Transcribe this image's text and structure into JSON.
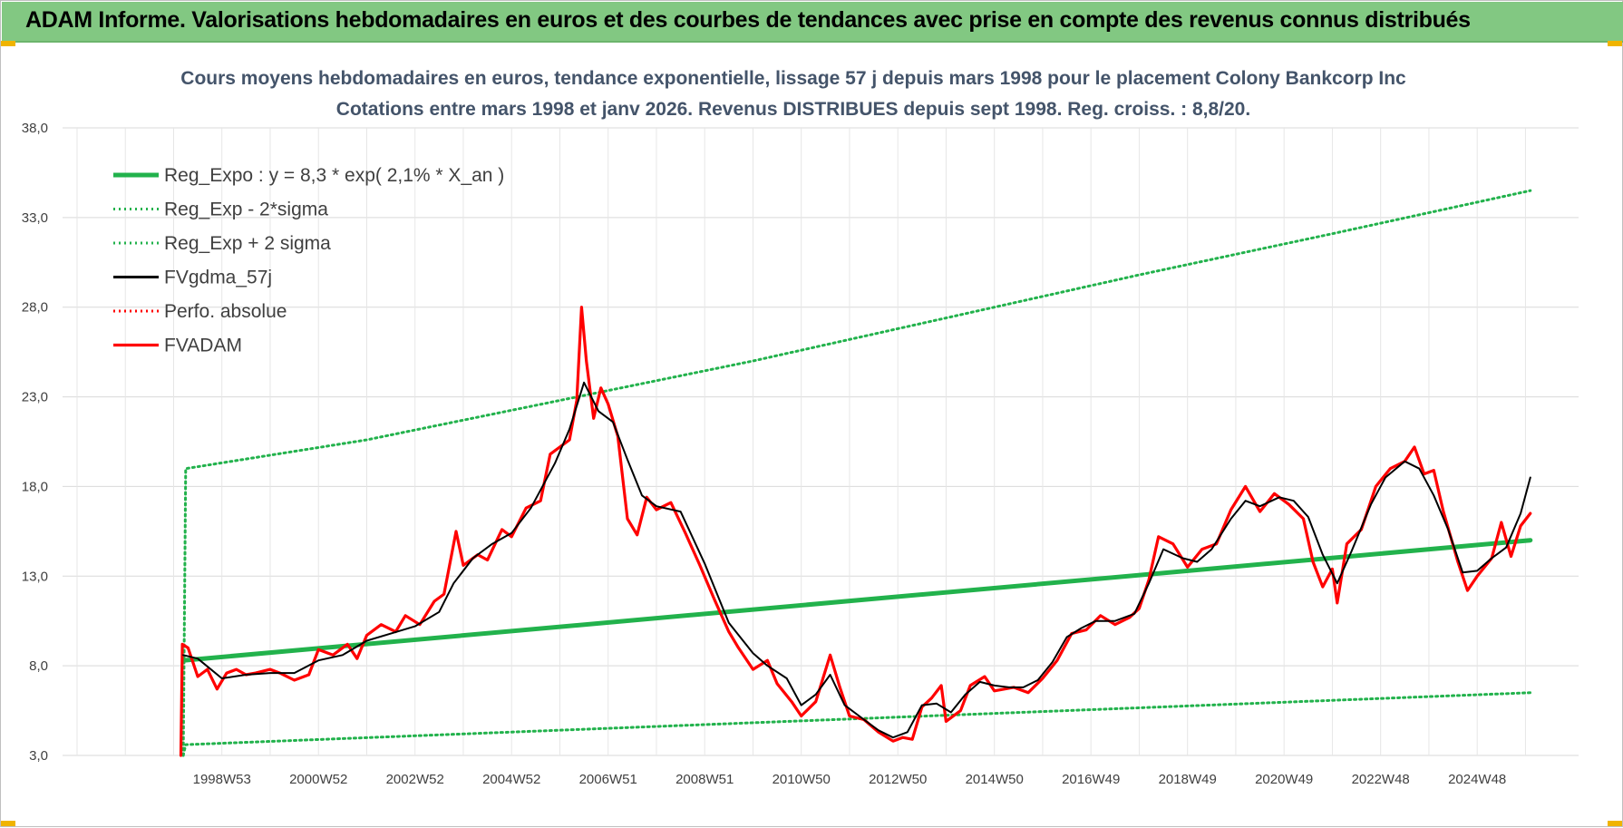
{
  "banner": {
    "title": "ADAM Informe. Valorisations hebdomadaires en euros et des courbes de tendances avec prise en compte des revenus connus distribués"
  },
  "colors": {
    "banner_bg": "#82c882",
    "reg_expo": "#22b24c",
    "fvadam": "#ff0000",
    "fvgdma": "#000000",
    "title_text": "#44546a",
    "grid": "#d9d9d9"
  },
  "chart_data": {
    "type": "line",
    "title": "Cours moyens hebdomadaires en euros, tendance exponentielle, lissage 57 j depuis mars 1998 pour le placement Colony Bankcorp Inc",
    "subtitle": "Cotations entre mars 1998 et janv 2026. Revenus DISTRIBUES depuis sept 1998. Reg. croiss. : 8,8/20.",
    "xlabel": "",
    "ylabel": "",
    "ylim": [
      3,
      38
    ],
    "xlim": [
      1995.7,
      2027.1
    ],
    "yticks": [
      "3,0",
      "8,0",
      "13,0",
      "18,0",
      "23,0",
      "28,0",
      "33,0",
      "38,0"
    ],
    "ytick_values": [
      3,
      8,
      13,
      18,
      23,
      28,
      33,
      38
    ],
    "xtick_labels": [
      "1998W53",
      "2000W52",
      "2002W52",
      "2004W52",
      "2006W51",
      "2008W51",
      "2010W50",
      "2012W50",
      "2014W50",
      "2016W49",
      "2018W49",
      "2020W49",
      "2022W48",
      "2024W48"
    ],
    "xtick_positions": [
      1999.0,
      2001.0,
      2003.0,
      2005.0,
      2007.0,
      2009.0,
      2011.0,
      2013.0,
      2015.0,
      2017.0,
      2019.0,
      2021.0,
      2023.0,
      2025.0
    ],
    "x_minor_gridlines": [
      1996,
      1997,
      1998,
      1999,
      2000,
      2001,
      2002,
      2003,
      2004,
      2005,
      2006,
      2007,
      2008,
      2009,
      2010,
      2011,
      2012,
      2013,
      2014,
      2015,
      2016,
      2017,
      2018,
      2019,
      2020,
      2021,
      2022,
      2023,
      2024,
      2025,
      2026
    ],
    "grid": true,
    "legend_position": "top-left",
    "series": [
      {
        "name": "Reg_Expo : y = 8,3 * exp( 2,1% *  X_an )",
        "style": "solid-thick",
        "color": "#22b24c",
        "points": [
          [
            1998.2,
            8.3
          ],
          [
            2026.1,
            15.0
          ]
        ]
      },
      {
        "name": "Reg_Exp - 2*sigma",
        "style": "dotted",
        "color": "#22b24c",
        "points": [
          [
            1998.2,
            3.0
          ],
          [
            1998.25,
            3.6
          ],
          [
            2026.1,
            6.5
          ]
        ]
      },
      {
        "name": "Reg_Exp + 2 sigma",
        "style": "dotted",
        "color": "#22b24c",
        "points": [
          [
            1998.2,
            3.0
          ],
          [
            1998.25,
            19.0
          ],
          [
            2002.0,
            20.6
          ],
          [
            2006.0,
            22.8
          ],
          [
            2010.0,
            25.0
          ],
          [
            2014.0,
            27.4
          ],
          [
            2018.0,
            29.8
          ],
          [
            2022.0,
            32.1
          ],
          [
            2026.1,
            34.5
          ]
        ]
      },
      {
        "name": "FVgdma_57j",
        "style": "solid",
        "color": "#000000",
        "points": [
          [
            1998.2,
            8.6
          ],
          [
            1998.5,
            8.4
          ],
          [
            1999.0,
            7.3
          ],
          [
            1999.5,
            7.5
          ],
          [
            2000.0,
            7.6
          ],
          [
            2000.5,
            7.6
          ],
          [
            2001.0,
            8.3
          ],
          [
            2001.5,
            8.6
          ],
          [
            2002.0,
            9.4
          ],
          [
            2002.5,
            9.8
          ],
          [
            2003.0,
            10.2
          ],
          [
            2003.5,
            11.0
          ],
          [
            2003.8,
            12.6
          ],
          [
            2004.2,
            14.0
          ],
          [
            2004.6,
            14.8
          ],
          [
            2005.0,
            15.4
          ],
          [
            2005.4,
            16.8
          ],
          [
            2005.9,
            19.3
          ],
          [
            2006.2,
            21.2
          ],
          [
            2006.5,
            23.8
          ],
          [
            2006.8,
            22.2
          ],
          [
            2007.1,
            21.6
          ],
          [
            2007.4,
            19.5
          ],
          [
            2007.7,
            17.5
          ],
          [
            2008.0,
            16.9
          ],
          [
            2008.5,
            16.6
          ],
          [
            2009.0,
            13.7
          ],
          [
            2009.5,
            10.4
          ],
          [
            2010.0,
            8.7
          ],
          [
            2010.3,
            8.0
          ],
          [
            2010.7,
            7.3
          ],
          [
            2011.0,
            5.8
          ],
          [
            2011.3,
            6.4
          ],
          [
            2011.6,
            7.5
          ],
          [
            2011.9,
            5.8
          ],
          [
            2012.3,
            5.0
          ],
          [
            2012.6,
            4.4
          ],
          [
            2012.9,
            4.0
          ],
          [
            2013.2,
            4.3
          ],
          [
            2013.5,
            5.8
          ],
          [
            2013.8,
            5.9
          ],
          [
            2014.1,
            5.4
          ],
          [
            2014.4,
            6.4
          ],
          [
            2014.7,
            7.1
          ],
          [
            2015.0,
            6.9
          ],
          [
            2015.3,
            6.8
          ],
          [
            2015.6,
            6.8
          ],
          [
            2015.9,
            7.2
          ],
          [
            2016.2,
            8.2
          ],
          [
            2016.5,
            9.6
          ],
          [
            2016.8,
            10.1
          ],
          [
            2017.1,
            10.5
          ],
          [
            2017.5,
            10.5
          ],
          [
            2017.9,
            10.9
          ],
          [
            2018.2,
            12.6
          ],
          [
            2018.5,
            14.5
          ],
          [
            2018.9,
            14.0
          ],
          [
            2019.2,
            13.8
          ],
          [
            2019.5,
            14.5
          ],
          [
            2019.9,
            16.2
          ],
          [
            2020.2,
            17.2
          ],
          [
            2020.5,
            16.9
          ],
          [
            2020.9,
            17.4
          ],
          [
            2021.2,
            17.2
          ],
          [
            2021.5,
            16.3
          ],
          [
            2021.8,
            14.2
          ],
          [
            2022.1,
            12.6
          ],
          [
            2022.4,
            14.4
          ],
          [
            2022.8,
            17.0
          ],
          [
            2023.1,
            18.5
          ],
          [
            2023.5,
            19.4
          ],
          [
            2023.8,
            19.0
          ],
          [
            2024.1,
            17.5
          ],
          [
            2024.4,
            15.6
          ],
          [
            2024.7,
            13.2
          ],
          [
            2025.0,
            13.3
          ],
          [
            2025.3,
            14.0
          ],
          [
            2025.6,
            14.6
          ],
          [
            2025.9,
            16.5
          ],
          [
            2026.1,
            18.5
          ]
        ]
      },
      {
        "name": "Perfo. absolue",
        "style": "dotted",
        "color": "#ff0000",
        "points": []
      },
      {
        "name": "FVADAM",
        "style": "solid-thick",
        "color": "#ff0000",
        "points": [
          [
            1998.15,
            3.0
          ],
          [
            1998.18,
            9.2
          ],
          [
            1998.3,
            9.0
          ],
          [
            1998.5,
            7.4
          ],
          [
            1998.7,
            7.8
          ],
          [
            1998.9,
            6.7
          ],
          [
            1999.1,
            7.6
          ],
          [
            1999.3,
            7.8
          ],
          [
            1999.5,
            7.5
          ],
          [
            1999.7,
            7.6
          ],
          [
            2000.0,
            7.8
          ],
          [
            2000.2,
            7.6
          ],
          [
            2000.5,
            7.2
          ],
          [
            2000.8,
            7.5
          ],
          [
            2001.0,
            8.9
          ],
          [
            2001.3,
            8.6
          ],
          [
            2001.6,
            9.2
          ],
          [
            2001.8,
            8.4
          ],
          [
            2002.0,
            9.7
          ],
          [
            2002.3,
            10.3
          ],
          [
            2002.6,
            9.9
          ],
          [
            2002.8,
            10.8
          ],
          [
            2003.1,
            10.3
          ],
          [
            2003.4,
            11.6
          ],
          [
            2003.6,
            12.0
          ],
          [
            2003.85,
            15.5
          ],
          [
            2004.0,
            13.6
          ],
          [
            2004.3,
            14.2
          ],
          [
            2004.5,
            13.9
          ],
          [
            2004.8,
            15.6
          ],
          [
            2005.0,
            15.2
          ],
          [
            2005.3,
            16.8
          ],
          [
            2005.6,
            17.2
          ],
          [
            2005.8,
            19.8
          ],
          [
            2006.0,
            20.2
          ],
          [
            2006.2,
            20.6
          ],
          [
            2006.35,
            22.8
          ],
          [
            2006.45,
            28.0
          ],
          [
            2006.55,
            25.0
          ],
          [
            2006.7,
            21.8
          ],
          [
            2006.85,
            23.5
          ],
          [
            2007.0,
            22.6
          ],
          [
            2007.2,
            20.8
          ],
          [
            2007.4,
            16.2
          ],
          [
            2007.6,
            15.3
          ],
          [
            2007.8,
            17.4
          ],
          [
            2008.0,
            16.7
          ],
          [
            2008.3,
            17.1
          ],
          [
            2008.6,
            15.4
          ],
          [
            2008.9,
            13.6
          ],
          [
            2009.2,
            11.7
          ],
          [
            2009.5,
            9.9
          ],
          [
            2009.7,
            9.0
          ],
          [
            2010.0,
            7.8
          ],
          [
            2010.3,
            8.3
          ],
          [
            2010.5,
            7.0
          ],
          [
            2010.8,
            6.0
          ],
          [
            2011.0,
            5.2
          ],
          [
            2011.3,
            6.0
          ],
          [
            2011.6,
            8.6
          ],
          [
            2011.8,
            6.8
          ],
          [
            2012.0,
            5.2
          ],
          [
            2012.3,
            5.0
          ],
          [
            2012.6,
            4.3
          ],
          [
            2012.9,
            3.8
          ],
          [
            2013.1,
            4.0
          ],
          [
            2013.3,
            3.9
          ],
          [
            2013.5,
            5.7
          ],
          [
            2013.7,
            6.2
          ],
          [
            2013.9,
            6.9
          ],
          [
            2014.0,
            4.9
          ],
          [
            2014.3,
            5.5
          ],
          [
            2014.5,
            6.9
          ],
          [
            2014.8,
            7.4
          ],
          [
            2015.0,
            6.6
          ],
          [
            2015.4,
            6.8
          ],
          [
            2015.7,
            6.5
          ],
          [
            2016.0,
            7.3
          ],
          [
            2016.3,
            8.3
          ],
          [
            2016.6,
            9.8
          ],
          [
            2016.9,
            10.0
          ],
          [
            2017.2,
            10.8
          ],
          [
            2017.5,
            10.3
          ],
          [
            2017.8,
            10.7
          ],
          [
            2018.0,
            11.2
          ],
          [
            2018.2,
            12.8
          ],
          [
            2018.4,
            15.2
          ],
          [
            2018.7,
            14.8
          ],
          [
            2019.0,
            13.5
          ],
          [
            2019.3,
            14.5
          ],
          [
            2019.6,
            14.8
          ],
          [
            2019.9,
            16.7
          ],
          [
            2020.2,
            18.0
          ],
          [
            2020.5,
            16.6
          ],
          [
            2020.8,
            17.6
          ],
          [
            2021.1,
            17.0
          ],
          [
            2021.4,
            16.2
          ],
          [
            2021.6,
            13.8
          ],
          [
            2021.8,
            12.4
          ],
          [
            2022.0,
            13.4
          ],
          [
            2022.1,
            11.5
          ],
          [
            2022.3,
            14.8
          ],
          [
            2022.6,
            15.6
          ],
          [
            2022.9,
            18.0
          ],
          [
            2023.2,
            19.0
          ],
          [
            2023.5,
            19.4
          ],
          [
            2023.7,
            20.2
          ],
          [
            2023.9,
            18.7
          ],
          [
            2024.1,
            18.9
          ],
          [
            2024.3,
            16.6
          ],
          [
            2024.6,
            13.8
          ],
          [
            2024.8,
            12.2
          ],
          [
            2025.0,
            13.0
          ],
          [
            2025.3,
            14.0
          ],
          [
            2025.5,
            16.0
          ],
          [
            2025.7,
            14.1
          ],
          [
            2025.9,
            15.8
          ],
          [
            2026.1,
            16.5
          ]
        ]
      }
    ]
  }
}
